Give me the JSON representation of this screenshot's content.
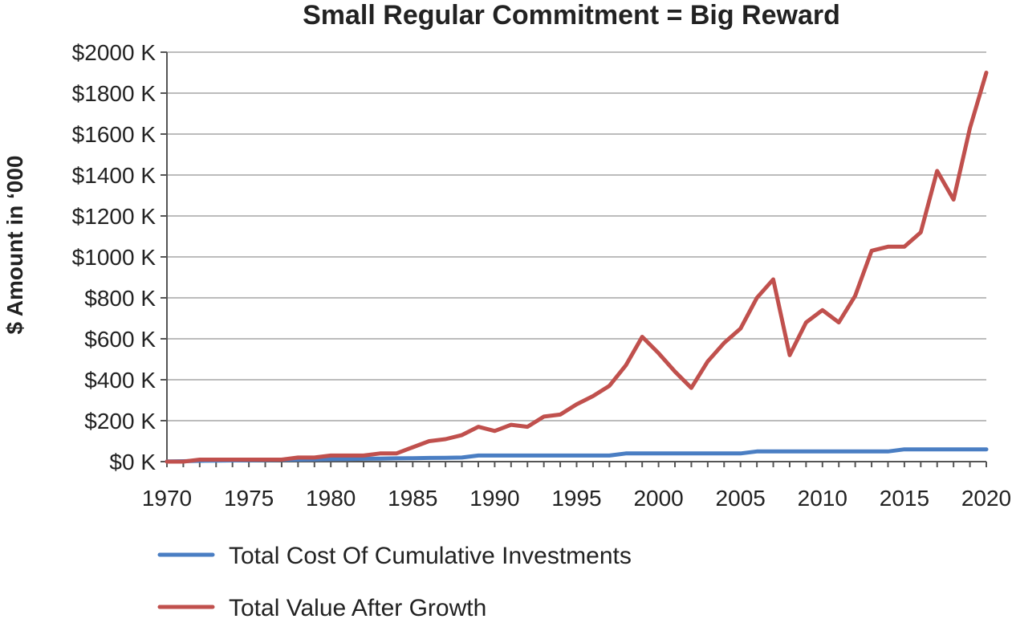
{
  "chart_data": {
    "type": "line",
    "title": "Small Regular Commitment = Big Reward",
    "ylabel": "$ Amount in ‘000",
    "xlabel": "",
    "xlim": [
      1970,
      2020
    ],
    "ylim": [
      0,
      2000
    ],
    "x_ticks": [
      1970,
      1975,
      1980,
      1985,
      1990,
      1995,
      2000,
      2005,
      2010,
      2015,
      2020
    ],
    "y_ticks": [
      0,
      200,
      400,
      600,
      800,
      1000,
      1200,
      1400,
      1600,
      1800,
      2000
    ],
    "y_tick_labels": [
      "$0 K",
      "$200 K",
      "$400 K",
      "$600 K",
      "$800 K",
      "$1000 K",
      "$1200 K",
      "$1400 K",
      "$1600 K",
      "$1800 K",
      "$2000 K"
    ],
    "grid": "horizontal",
    "legend_position": "bottom",
    "x": [
      1970,
      1971,
      1972,
      1973,
      1974,
      1975,
      1976,
      1977,
      1978,
      1979,
      1980,
      1981,
      1982,
      1983,
      1984,
      1985,
      1986,
      1987,
      1988,
      1989,
      1990,
      1991,
      1992,
      1993,
      1994,
      1995,
      1996,
      1997,
      1998,
      1999,
      2000,
      2001,
      2002,
      2003,
      2004,
      2005,
      2006,
      2007,
      2008,
      2009,
      2010,
      2011,
      2012,
      2013,
      2014,
      2015,
      2016,
      2017,
      2018,
      2019,
      2020
    ],
    "series": [
      {
        "name": "Total Cost Of Cumulative Investments",
        "color": "#4a7ec3",
        "values": [
          1,
          2,
          4,
          5,
          6,
          7,
          8,
          9,
          10,
          11,
          12,
          13,
          14,
          15,
          16,
          17,
          18,
          19,
          20,
          30,
          30,
          30,
          30,
          30,
          30,
          30,
          30,
          30,
          40,
          40,
          40,
          40,
          40,
          40,
          40,
          40,
          50,
          50,
          50,
          50,
          50,
          50,
          50,
          50,
          50,
          60,
          60,
          60,
          60,
          60,
          60
        ]
      },
      {
        "name": "Total Value After Growth",
        "color": "#c0504d",
        "values": [
          0,
          0,
          10,
          10,
          10,
          10,
          10,
          10,
          20,
          20,
          30,
          30,
          30,
          40,
          40,
          70,
          100,
          110,
          130,
          170,
          150,
          180,
          170,
          220,
          230,
          280,
          320,
          370,
          470,
          610,
          530,
          440,
          360,
          490,
          580,
          650,
          800,
          890,
          520,
          680,
          740,
          680,
          810,
          1030,
          1050,
          1050,
          1120,
          1420,
          1280,
          1630,
          1900
        ]
      }
    ]
  }
}
